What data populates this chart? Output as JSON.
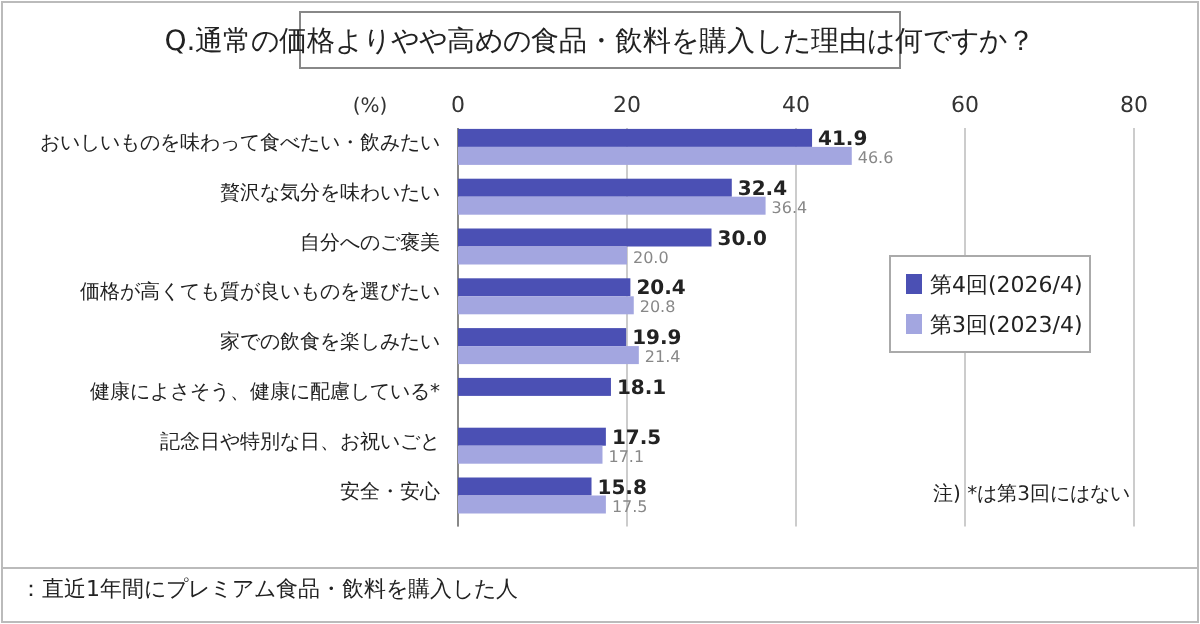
{
  "chart_data": {
    "type": "bar",
    "orientation": "horizontal",
    "title": "Q.通常の価格よりやや高めの食品・飲料を購入した理由は何ですか？",
    "xlabel": "(%)",
    "categories": [
      "おいしいものを味わって食べたい・飲みたい",
      "贅沢な気分を味わいたい",
      "自分へのご褒美",
      "価格が高くても質が良いものを選びたい",
      "家での飲食を楽しみたい",
      "健康によさそう、健康に配慮している*",
      "記念日や特別な日、お祝いごと",
      "安全・安心"
    ],
    "series": [
      {
        "name": "第4回(2026/4)",
        "color": "#4b50b4",
        "values": [
          41.9,
          32.4,
          30.0,
          20.4,
          19.9,
          18.1,
          17.5,
          15.8
        ],
        "value_labels": [
          "41.9",
          "32.4",
          "30.0",
          "20.4",
          "19.9",
          "18.1",
          "17.5",
          "15.8"
        ]
      },
      {
        "name": "第3回(2023/4)",
        "color": "#a3a6e0",
        "values": [
          46.6,
          36.4,
          20.0,
          20.8,
          21.4,
          null,
          17.1,
          17.5
        ],
        "value_labels": [
          "46.6",
          "36.4",
          "20.0",
          "20.8",
          "21.4",
          null,
          "17.1",
          "17.5"
        ]
      }
    ],
    "xlim": [
      0,
      80
    ],
    "xticks": [
      0,
      20,
      40,
      60,
      80
    ],
    "grid": "x",
    "legend": "right",
    "annotations": [
      "注) *は第3回にはない",
      "：直近1年間にプレミアム食品・飲料を購入した人"
    ]
  }
}
